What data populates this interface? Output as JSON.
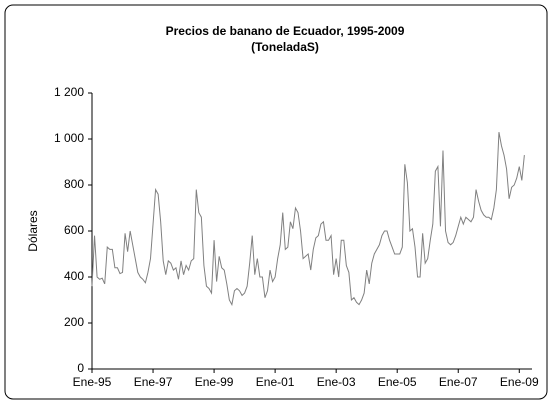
{
  "chart_data": {
    "type": "line",
    "title": "Precios de banano de Ecuador, 1995-2009",
    "subtitle": "(ToneladaS)",
    "y_label": "Dólares",
    "color": "#808080",
    "ylim": [
      0,
      1200
    ],
    "yticks": [
      0,
      200,
      400,
      600,
      800,
      {
        "value": 1000,
        "label": "1 000"
      },
      {
        "value": 1200,
        "label": "1 200"
      }
    ],
    "categories": [
      "Ene-95",
      null,
      null,
      null,
      null,
      null,
      null,
      null,
      null,
      null,
      null,
      null,
      null,
      null,
      null,
      null,
      null,
      null,
      null,
      null,
      null,
      null,
      null,
      null,
      "Ene-97",
      null,
      null,
      null,
      null,
      null,
      null,
      null,
      null,
      null,
      null,
      null,
      null,
      null,
      null,
      null,
      null,
      null,
      null,
      null,
      null,
      null,
      null,
      null,
      "Ene-99",
      null,
      null,
      null,
      null,
      null,
      null,
      null,
      null,
      null,
      null,
      null,
      null,
      null,
      null,
      null,
      null,
      null,
      null,
      null,
      null,
      null,
      null,
      null,
      "Ene-01",
      null,
      null,
      null,
      null,
      null,
      null,
      null,
      null,
      null,
      null,
      null,
      null,
      null,
      null,
      null,
      null,
      null,
      null,
      null,
      null,
      null,
      null,
      null,
      "Ene-03",
      null,
      null,
      null,
      null,
      null,
      null,
      null,
      null,
      null,
      null,
      null,
      null,
      null,
      null,
      null,
      null,
      null,
      null,
      null,
      null,
      null,
      null,
      null,
      "Ene-05",
      null,
      null,
      null,
      null,
      null,
      null,
      null,
      null,
      null,
      null,
      null,
      null,
      null,
      null,
      null,
      null,
      null,
      null,
      null,
      null,
      null,
      null,
      null,
      "Ene-07",
      null,
      null,
      null,
      null,
      null,
      null,
      null,
      null,
      null,
      null,
      null,
      null,
      null,
      null,
      null,
      null,
      null,
      null,
      null,
      null,
      null,
      null,
      null,
      "Ene-09",
      null,
      null
    ],
    "values": [
      360,
      580,
      400,
      390,
      395,
      370,
      530,
      520,
      520,
      440,
      440,
      415,
      420,
      590,
      510,
      600,
      540,
      480,
      420,
      400,
      390,
      375,
      420,
      480,
      630,
      780,
      760,
      640,
      470,
      410,
      470,
      460,
      430,
      440,
      390,
      470,
      410,
      450,
      430,
      470,
      480,
      780,
      680,
      660,
      450,
      360,
      350,
      330,
      560,
      380,
      490,
      440,
      430,
      370,
      300,
      280,
      340,
      350,
      340,
      320,
      330,
      360,
      460,
      580,
      410,
      480,
      400,
      400,
      310,
      340,
      430,
      380,
      400,
      480,
      540,
      680,
      520,
      530,
      640,
      610,
      700,
      680,
      600,
      480,
      490,
      500,
      430,
      520,
      570,
      580,
      630,
      640,
      560,
      560,
      580,
      410,
      480,
      400,
      560,
      560,
      450,
      420,
      300,
      310,
      290,
      280,
      300,
      330,
      430,
      370,
      460,
      500,
      520,
      540,
      580,
      600,
      600,
      560,
      530,
      500,
      500,
      500,
      530,
      890,
      810,
      600,
      610,
      530,
      400,
      400,
      590,
      460,
      480,
      560,
      630,
      860,
      880,
      620,
      950,
      600,
      550,
      540,
      550,
      580,
      620,
      660,
      630,
      660,
      650,
      640,
      660,
      780,
      730,
      690,
      670,
      660,
      660,
      650,
      700,
      780,
      1030,
      970,
      930,
      870,
      740,
      790,
      800,
      830,
      880,
      820,
      930
    ]
  }
}
